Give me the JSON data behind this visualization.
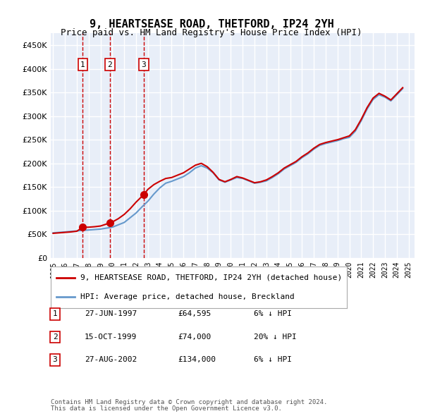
{
  "title": "9, HEARTSEASE ROAD, THETFORD, IP24 2YH",
  "subtitle": "Price paid vs. HM Land Registry's House Price Index (HPI)",
  "legend_label_red": "9, HEARTSEASE ROAD, THETFORD, IP24 2YH (detached house)",
  "legend_label_blue": "HPI: Average price, detached house, Breckland",
  "footer_line1": "Contains HM Land Registry data © Crown copyright and database right 2024.",
  "footer_line2": "This data is licensed under the Open Government Licence v3.0.",
  "transactions": [
    {
      "num": 1,
      "date": "27-JUN-1997",
      "price": 64595,
      "year": 1997.49,
      "rel": "6% ↓ HPI"
    },
    {
      "num": 2,
      "date": "15-OCT-1999",
      "price": 74000,
      "year": 1999.79,
      "rel": "20% ↓ HPI"
    },
    {
      "num": 3,
      "date": "27-AUG-2002",
      "price": 134000,
      "year": 2002.65,
      "rel": "6% ↓ HPI"
    }
  ],
  "background_color": "#e8eef8",
  "plot_bg_color": "#e8eef8",
  "red_color": "#cc0000",
  "blue_color": "#6699cc",
  "grid_color": "#ffffff",
  "ylim": [
    0,
    475000
  ],
  "yticks": [
    0,
    50000,
    100000,
    150000,
    200000,
    250000,
    300000,
    350000,
    400000,
    450000
  ],
  "hpi_years": [
    1995,
    1995.5,
    1996,
    1996.5,
    1997,
    1997.5,
    1998,
    1998.5,
    1999,
    1999.5,
    2000,
    2000.5,
    2001,
    2001.5,
    2002,
    2002.5,
    2003,
    2003.5,
    2004,
    2004.5,
    2005,
    2005.5,
    2006,
    2006.5,
    2007,
    2007.5,
    2008,
    2008.5,
    2009,
    2009.5,
    2010,
    2010.5,
    2011,
    2011.5,
    2012,
    2012.5,
    2013,
    2013.5,
    2014,
    2014.5,
    2015,
    2015.5,
    2016,
    2016.5,
    2017,
    2017.5,
    2018,
    2018.5,
    2019,
    2019.5,
    2020,
    2020.5,
    2021,
    2021.5,
    2022,
    2022.5,
    2023,
    2023.5,
    2024,
    2024.5
  ],
  "hpi_values": [
    53000,
    54000,
    55000,
    56000,
    57000,
    58500,
    59000,
    60000,
    61000,
    63000,
    65000,
    70000,
    75000,
    85000,
    95000,
    108000,
    120000,
    135000,
    148000,
    158000,
    162000,
    167000,
    172000,
    180000,
    190000,
    195000,
    190000,
    180000,
    165000,
    160000,
    165000,
    170000,
    168000,
    163000,
    158000,
    160000,
    163000,
    170000,
    178000,
    188000,
    195000,
    202000,
    212000,
    220000,
    230000,
    238000,
    242000,
    245000,
    248000,
    252000,
    255000,
    268000,
    290000,
    315000,
    335000,
    345000,
    340000,
    332000,
    345000,
    358000
  ],
  "red_years": [
    1995,
    1995.5,
    1996,
    1996.5,
    1997,
    1997.49,
    1997.5,
    1998,
    1998.5,
    1999,
    1999.79,
    2000,
    2000.5,
    2001,
    2001.5,
    2002,
    2002.65,
    2003,
    2003.5,
    2004,
    2004.5,
    2005,
    2005.5,
    2006,
    2006.5,
    2007,
    2007.5,
    2008,
    2008.5,
    2009,
    2009.5,
    2010,
    2010.5,
    2011,
    2011.5,
    2012,
    2012.5,
    2013,
    2013.5,
    2014,
    2014.5,
    2015,
    2015.5,
    2016,
    2016.5,
    2017,
    2017.5,
    2018,
    2018.5,
    2019,
    2019.5,
    2020,
    2020.5,
    2021,
    2021.5,
    2022,
    2022.5,
    2023,
    2023.5,
    2024,
    2024.5
  ],
  "red_values": [
    52000,
    53000,
    54000,
    55000,
    56500,
    64595,
    64700,
    65000,
    66000,
    67500,
    74000,
    76000,
    83000,
    92000,
    104000,
    118000,
    134000,
    145000,
    155000,
    162000,
    168000,
    170000,
    175000,
    180000,
    188000,
    196000,
    200000,
    193000,
    181000,
    166000,
    161000,
    166000,
    172000,
    169000,
    164000,
    159000,
    161000,
    165000,
    172000,
    180000,
    190000,
    197000,
    204000,
    214000,
    222000,
    232000,
    240000,
    244000,
    247000,
    250000,
    254000,
    258000,
    271000,
    293000,
    318000,
    338000,
    348000,
    342000,
    334000,
    347000,
    360000
  ],
  "xtick_years": [
    1995,
    1996,
    1997,
    1998,
    1999,
    2000,
    2001,
    2002,
    2003,
    2004,
    2005,
    2006,
    2007,
    2008,
    2009,
    2010,
    2011,
    2012,
    2013,
    2014,
    2015,
    2016,
    2017,
    2018,
    2019,
    2020,
    2021,
    2022,
    2023,
    2024,
    2025
  ]
}
